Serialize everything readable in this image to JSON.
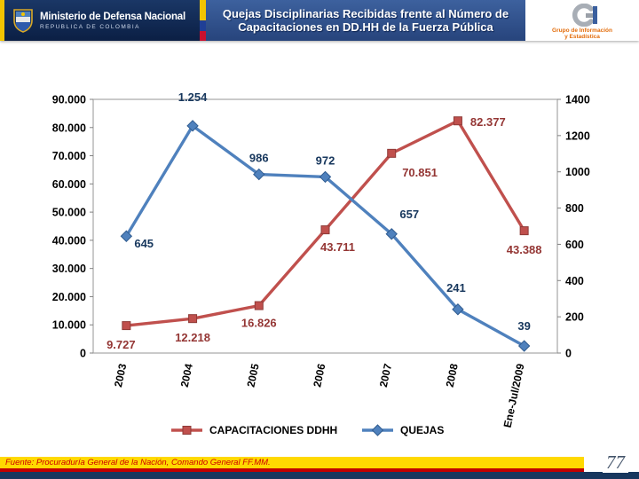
{
  "header": {
    "ministry_name": "Ministerio de Defensa Nacional",
    "ministry_subtitle": "REPUBLICA DE COLOMBIA",
    "title_line1": "Quejas Disciplinarias Recibidas frente al Número de",
    "title_line2": "Capacitaciones en DD.HH de la Fuerza Pública",
    "stats_line1": "Grupo de Información",
    "stats_line2": "y Estadística"
  },
  "footer": {
    "source": "Fuente: Procuraduría General de la Nación, Comando General FF.MM.",
    "page": "77"
  },
  "chart_data": {
    "type": "line",
    "categories": [
      "2003",
      "2004",
      "2005",
      "2006",
      "2007",
      "2008",
      "Ene-Jul/2009"
    ],
    "series": [
      {
        "name": "CAPACITACIONES DDHH",
        "axis": "left",
        "marker": "square",
        "color": "#C0504D",
        "marker_border": "#8e3a37",
        "label_color": "#943634",
        "values": [
          9727,
          12218,
          16826,
          43711,
          70851,
          82377,
          43388
        ],
        "labels": [
          "9.727",
          "12.218",
          "16.826",
          "43.711",
          "70.851",
          "82.377",
          "43.388"
        ]
      },
      {
        "name": "QUEJAS",
        "axis": "right",
        "marker": "diamond",
        "color": "#4F81BD",
        "marker_border": "#2f5b8f",
        "label_color": "#17375D",
        "values": [
          645,
          1254,
          986,
          972,
          657,
          241,
          39
        ],
        "labels": [
          "645",
          "1.254",
          "986",
          "972",
          "657",
          "241",
          "39"
        ]
      }
    ],
    "left_axis": {
      "min": 0,
      "max": 90000,
      "step": 10000,
      "tick_labels": [
        "0",
        "10.000",
        "20.000",
        "30.000",
        "40.000",
        "50.000",
        "60.000",
        "70.000",
        "80.000",
        "90.000"
      ]
    },
    "right_axis": {
      "min": 0,
      "max": 1400,
      "step": 200,
      "tick_labels": [
        "0",
        "200",
        "400",
        "600",
        "800",
        "1000",
        "1200",
        "1400"
      ]
    },
    "legend": {
      "position": "bottom",
      "entries": [
        "CAPACITACIONES DDHH",
        "QUEJAS"
      ]
    },
    "grid": false,
    "plot_border_color": "#a6a6a6"
  }
}
